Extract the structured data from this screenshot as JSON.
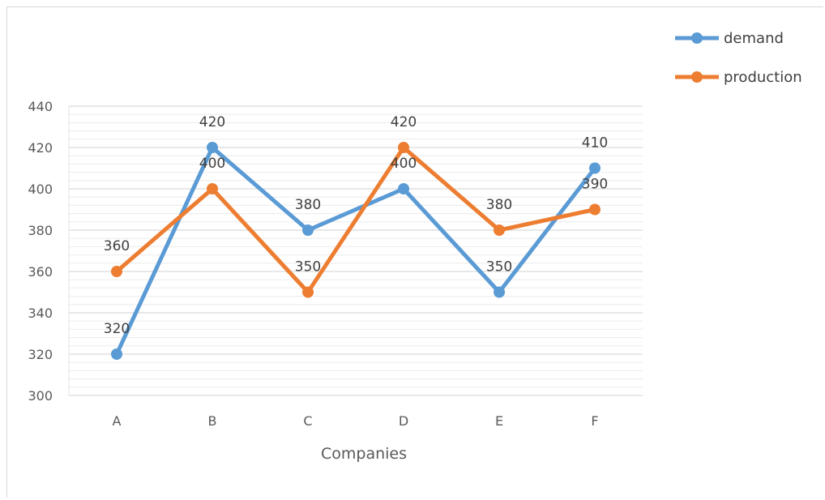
{
  "chart_data": {
    "type": "line",
    "categories": [
      "A",
      "B",
      "C",
      "D",
      "E",
      "F"
    ],
    "series": [
      {
        "name": "demand",
        "values": [
          320,
          420,
          380,
          400,
          350,
          410
        ],
        "color": "#5b9bd5"
      },
      {
        "name": "production",
        "values": [
          360,
          400,
          350,
          420,
          380,
          390
        ],
        "color": "#ed7d31"
      }
    ],
    "title": "",
    "xlabel": "Companies",
    "ylabel": "",
    "ylim": [
      300,
      440
    ],
    "yticks": [
      300,
      320,
      340,
      360,
      380,
      400,
      420,
      440
    ],
    "grid": true,
    "legend_position": "top-right",
    "data_labels": true
  }
}
